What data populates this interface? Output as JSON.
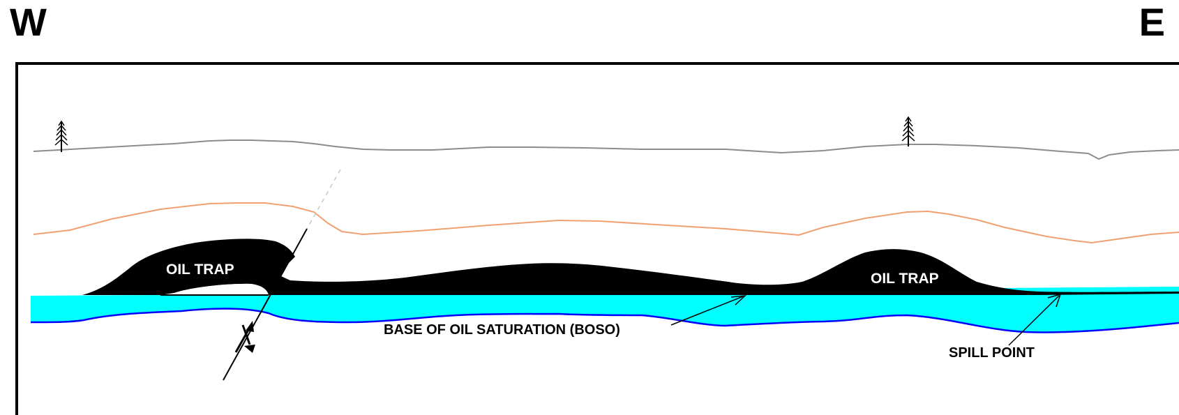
{
  "compass": {
    "west": "W",
    "east": "E"
  },
  "labels": {
    "oil_trap_west": "OIL TRAP",
    "oil_trap_east": "OIL TRAP",
    "boso": "BASE OF OIL SATURATION (BOSO)",
    "spill_point": "SPILL POINT"
  },
  "colors": {
    "surface": "#8c8c8c",
    "upper_horizon": "#f0a070",
    "oil": "#000000",
    "water": "#00ffff",
    "water_base": "#0000ff",
    "frame": "#000000"
  },
  "icons": {
    "tree_west": "tree-icon",
    "tree_east": "tree-icon"
  }
}
